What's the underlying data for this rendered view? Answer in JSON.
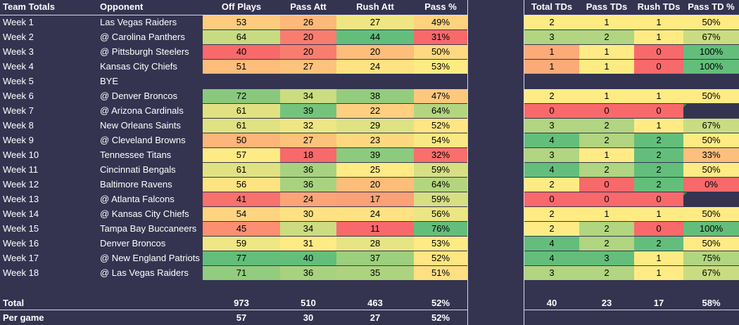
{
  "headers": {
    "team_totals": "Team Totals",
    "opponent": "Opponent",
    "off_plays": "Off Plays",
    "pass_att": "Pass Att",
    "rush_att": "Rush Att",
    "pass_pct": "Pass %",
    "total_tds": "Total TDs",
    "pass_tds": "Pass TDs",
    "rush_tds": "Rush TDs",
    "pass_td_pct": "Pass TD %"
  },
  "weeks": [
    {
      "week": "Week 1",
      "opponent": "Las Vegas Raiders",
      "off_plays": "53",
      "pass_att": "26",
      "rush_att": "27",
      "pass_pct": "49%",
      "total_tds": "2",
      "pass_tds": "1",
      "rush_tds": "1",
      "pass_td_pct": "50%"
    },
    {
      "week": "Week 2",
      "opponent": "@ Carolina Panthers",
      "off_plays": "64",
      "pass_att": "20",
      "rush_att": "44",
      "pass_pct": "31%",
      "total_tds": "3",
      "pass_tds": "2",
      "rush_tds": "1",
      "pass_td_pct": "67%"
    },
    {
      "week": "Week 3",
      "opponent": "@ Pittsburgh Steelers",
      "off_plays": "40",
      "pass_att": "20",
      "rush_att": "20",
      "pass_pct": "50%",
      "total_tds": "1",
      "pass_tds": "1",
      "rush_tds": "0",
      "pass_td_pct": "100%"
    },
    {
      "week": "Week 4",
      "opponent": "Kansas City Chiefs",
      "off_plays": "51",
      "pass_att": "27",
      "rush_att": "24",
      "pass_pct": "53%",
      "total_tds": "1",
      "pass_tds": "1",
      "rush_tds": "0",
      "pass_td_pct": "100%"
    },
    {
      "week": "Week 5",
      "opponent": "BYE",
      "off_plays": "",
      "pass_att": "",
      "rush_att": "",
      "pass_pct": "",
      "total_tds": "",
      "pass_tds": "",
      "rush_tds": "",
      "pass_td_pct": ""
    },
    {
      "week": "Week 6",
      "opponent": "@ Denver Broncos",
      "off_plays": "72",
      "pass_att": "34",
      "rush_att": "38",
      "pass_pct": "47%",
      "total_tds": "2",
      "pass_tds": "1",
      "rush_tds": "1",
      "pass_td_pct": "50%"
    },
    {
      "week": "Week 7",
      "opponent": "@ Arizona Cardinals",
      "off_plays": "61",
      "pass_att": "39",
      "rush_att": "22",
      "pass_pct": "64%",
      "total_tds": "0",
      "pass_tds": "0",
      "rush_tds": "0",
      "pass_td_pct": ""
    },
    {
      "week": "Week 8",
      "opponent": "New Orleans Saints",
      "off_plays": "61",
      "pass_att": "32",
      "rush_att": "29",
      "pass_pct": "52%",
      "total_tds": "3",
      "pass_tds": "2",
      "rush_tds": "1",
      "pass_td_pct": "67%"
    },
    {
      "week": "Week 9",
      "opponent": "@ Cleveland Browns",
      "off_plays": "50",
      "pass_att": "27",
      "rush_att": "23",
      "pass_pct": "54%",
      "total_tds": "4",
      "pass_tds": "2",
      "rush_tds": "2",
      "pass_td_pct": "50%"
    },
    {
      "week": "Week 10",
      "opponent": "Tennessee Titans",
      "off_plays": "57",
      "pass_att": "18",
      "rush_att": "39",
      "pass_pct": "32%",
      "total_tds": "3",
      "pass_tds": "1",
      "rush_tds": "2",
      "pass_td_pct": "33%"
    },
    {
      "week": "Week 11",
      "opponent": "Cincinnati Bengals",
      "off_plays": "61",
      "pass_att": "36",
      "rush_att": "25",
      "pass_pct": "59%",
      "total_tds": "4",
      "pass_tds": "2",
      "rush_tds": "2",
      "pass_td_pct": "50%"
    },
    {
      "week": "Week 12",
      "opponent": "Baltimore Ravens",
      "off_plays": "56",
      "pass_att": "36",
      "rush_att": "20",
      "pass_pct": "64%",
      "total_tds": "2",
      "pass_tds": "0",
      "rush_tds": "2",
      "pass_td_pct": "0%"
    },
    {
      "week": "Week 13",
      "opponent": "@ Atlanta Falcons",
      "off_plays": "41",
      "pass_att": "24",
      "rush_att": "17",
      "pass_pct": "59%",
      "total_tds": "0",
      "pass_tds": "0",
      "rush_tds": "0",
      "pass_td_pct": ""
    },
    {
      "week": "Week 14",
      "opponent": "@ Kansas City Chiefs",
      "off_plays": "54",
      "pass_att": "30",
      "rush_att": "24",
      "pass_pct": "56%",
      "total_tds": "2",
      "pass_tds": "1",
      "rush_tds": "1",
      "pass_td_pct": "50%"
    },
    {
      "week": "Week 15",
      "opponent": "Tampa Bay Buccaneers",
      "off_plays": "45",
      "pass_att": "34",
      "rush_att": "11",
      "pass_pct": "76%",
      "total_tds": "2",
      "pass_tds": "2",
      "rush_tds": "0",
      "pass_td_pct": "100%"
    },
    {
      "week": "Week 16",
      "opponent": "Denver Broncos",
      "off_plays": "59",
      "pass_att": "31",
      "rush_att": "28",
      "pass_pct": "53%",
      "total_tds": "4",
      "pass_tds": "2",
      "rush_tds": "2",
      "pass_td_pct": "50%"
    },
    {
      "week": "Week 17",
      "opponent": "@ New England Patriots",
      "off_plays": "77",
      "pass_att": "40",
      "rush_att": "37",
      "pass_pct": "52%",
      "total_tds": "4",
      "pass_tds": "3",
      "rush_tds": "1",
      "pass_td_pct": "75%"
    },
    {
      "week": "Week 18",
      "opponent": "@ Las Vegas Raiders",
      "off_plays": "71",
      "pass_att": "36",
      "rush_att": "35",
      "pass_pct": "51%",
      "total_tds": "3",
      "pass_tds": "2",
      "rush_tds": "1",
      "pass_td_pct": "67%"
    }
  ],
  "total": {
    "label": "Total",
    "off_plays": "973",
    "pass_att": "510",
    "rush_att": "463",
    "pass_pct": "52%",
    "total_tds": "40",
    "pass_tds": "23",
    "rush_tds": "17",
    "pass_td_pct": "58%"
  },
  "per_game": {
    "label": "Per game",
    "off_plays": "57",
    "pass_att": "30",
    "rush_att": "27",
    "pass_pct": "52%"
  },
  "colors": {
    "background": "#343451",
    "scale_red": "#f8696b",
    "scale_yellow": "#ffeb84",
    "scale_green": "#63be7b",
    "header_text": "#ffffff",
    "comment_flag": "#3a9b3a"
  }
}
